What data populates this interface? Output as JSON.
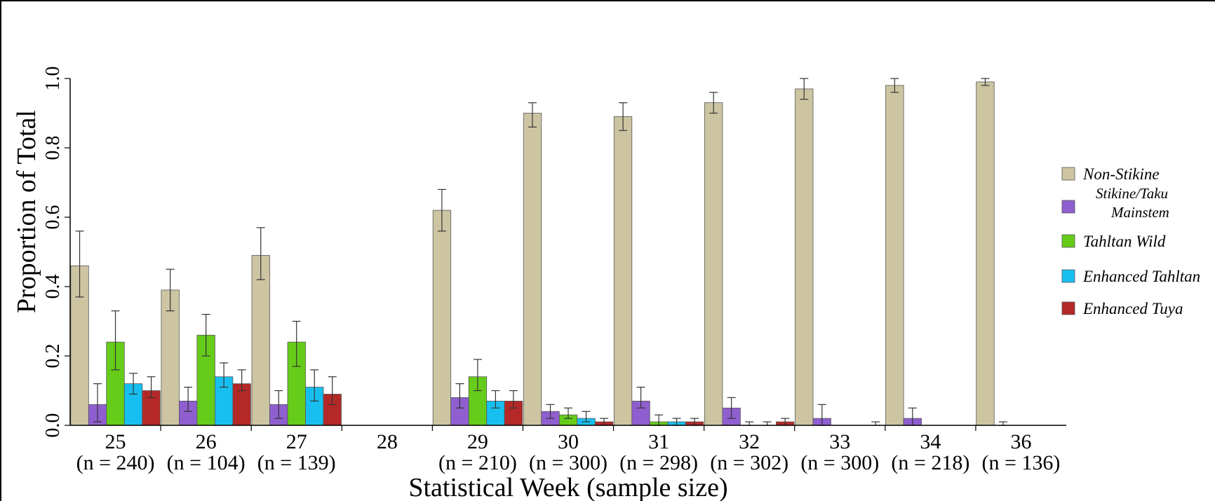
{
  "chart_data": {
    "type": "bar",
    "xlabel": "Statistical Week (sample size)",
    "ylabel": "Proportion of Total",
    "ylim": [
      0,
      1.0
    ],
    "y_ticks": [
      "0.0",
      "0.2",
      "0.4",
      "0.6",
      "0.8",
      "1.0"
    ],
    "legend_position": "right",
    "categories": [
      {
        "week": "25",
        "n": "(n = 240)"
      },
      {
        "week": "26",
        "n": "(n = 104)"
      },
      {
        "week": "27",
        "n": "(n = 139)"
      },
      {
        "week": "28",
        "n": ""
      },
      {
        "week": "29",
        "n": "(n = 210)"
      },
      {
        "week": "30",
        "n": "(n = 300)"
      },
      {
        "week": "31",
        "n": "(n = 298)"
      },
      {
        "week": "32",
        "n": "(n = 302)"
      },
      {
        "week": "33",
        "n": "(n = 300)"
      },
      {
        "week": "34",
        "n": "(n = 218)"
      },
      {
        "week": "36",
        "n": "(n = 136)"
      }
    ],
    "series": [
      {
        "name": "Non-Stikine",
        "color": "#cdc5a2",
        "values": [
          0.46,
          0.39,
          0.49,
          null,
          0.62,
          0.9,
          0.89,
          0.93,
          0.97,
          0.98,
          0.99
        ],
        "err_low": [
          0.37,
          0.33,
          0.42,
          null,
          0.56,
          0.86,
          0.85,
          0.9,
          0.94,
          0.96,
          0.98
        ],
        "err_high": [
          0.56,
          0.45,
          0.57,
          null,
          0.68,
          0.93,
          0.93,
          0.96,
          1.0,
          1.0,
          1.0
        ]
      },
      {
        "name": "Stikine/Taku\nMainstem",
        "color": "#8f5fd0",
        "values": [
          0.06,
          0.07,
          0.06,
          null,
          0.08,
          0.04,
          0.07,
          0.05,
          0.02,
          0.02,
          0.0
        ],
        "err_low": [
          0.01,
          0.04,
          0.02,
          null,
          0.05,
          0.02,
          0.05,
          0.02,
          0.0,
          0.0,
          0.0
        ],
        "err_high": [
          0.12,
          0.11,
          0.1,
          null,
          0.12,
          0.06,
          0.11,
          0.08,
          0.06,
          0.05,
          0.01
        ]
      },
      {
        "name": "Tahltan Wild",
        "color": "#66cc1a",
        "values": [
          0.24,
          0.26,
          0.24,
          null,
          0.14,
          0.03,
          0.01,
          0.0,
          0.0,
          0.0,
          0.0
        ],
        "err_low": [
          0.16,
          0.2,
          0.17,
          null,
          0.1,
          0.02,
          0.0,
          0.0,
          0.0,
          0.0,
          0.0
        ],
        "err_high": [
          0.33,
          0.32,
          0.3,
          null,
          0.19,
          0.05,
          0.03,
          0.01,
          0.0,
          0.0,
          0.0
        ]
      },
      {
        "name": "Enhanced Tahltan",
        "color": "#17bff0",
        "values": [
          0.12,
          0.14,
          0.11,
          null,
          0.07,
          0.02,
          0.01,
          0.0,
          0.0,
          0.0,
          0.0
        ],
        "err_low": [
          0.09,
          0.11,
          0.07,
          null,
          0.05,
          0.01,
          0.0,
          0.0,
          0.0,
          0.0,
          0.0
        ],
        "err_high": [
          0.15,
          0.18,
          0.16,
          null,
          0.1,
          0.04,
          0.02,
          0.01,
          0.0,
          0.0,
          0.0
        ]
      },
      {
        "name": "Enhanced Tuya",
        "color": "#b52828",
        "values": [
          0.1,
          0.12,
          0.09,
          null,
          0.07,
          0.01,
          0.01,
          0.01,
          0.0,
          0.0,
          0.0
        ],
        "err_low": [
          0.08,
          0.1,
          0.06,
          null,
          0.05,
          0.0,
          0.0,
          0.0,
          0.0,
          0.0,
          0.0
        ],
        "err_high": [
          0.14,
          0.16,
          0.14,
          null,
          0.1,
          0.02,
          0.02,
          0.02,
          0.01,
          0.0,
          0.0
        ]
      }
    ]
  }
}
